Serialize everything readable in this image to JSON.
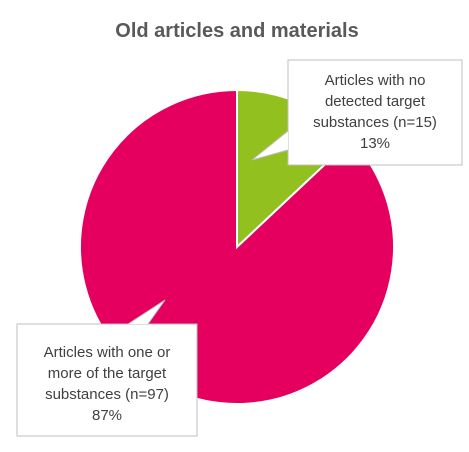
{
  "chart_data": {
    "type": "pie",
    "title": "Old articles and materials",
    "slices": [
      {
        "label_lines": [
          "Articles with no",
          "detected target",
          "substances (n=15)",
          "13%"
        ],
        "count": 15,
        "percent": 13,
        "color": "#92c01f"
      },
      {
        "label_lines": [
          "Articles with one or",
          "more of the target",
          "substances  (n=97)",
          "87%"
        ],
        "count": 97,
        "percent": 87,
        "color": "#e5005f"
      }
    ],
    "start_angle_deg": 0,
    "direction": "clockwise"
  }
}
